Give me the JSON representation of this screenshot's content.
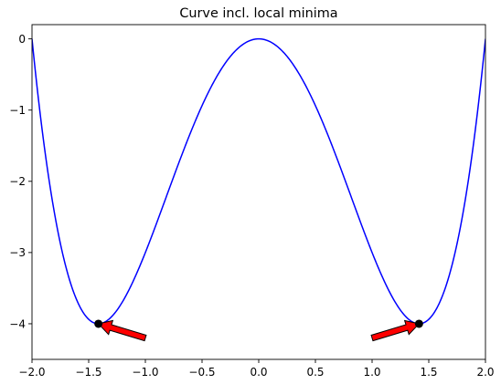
{
  "chart_data": {
    "type": "line",
    "title": "Curve incl. local minima",
    "xlabel": "",
    "ylabel": "",
    "xlim": [
      -2.0,
      2.0
    ],
    "ylim": [
      -4.5,
      0.2
    ],
    "x_ticks": [
      -2.0,
      -1.5,
      -1.0,
      -0.5,
      0.0,
      0.5,
      1.0,
      1.5,
      2.0
    ],
    "x_tick_labels": [
      "−2.0",
      "−1.5",
      "−1.0",
      "−0.5",
      "0.0",
      "0.5",
      "1.0",
      "1.5",
      "2.0"
    ],
    "y_ticks": [
      0,
      -1,
      -2,
      -3,
      -4
    ],
    "y_tick_labels": [
      "0",
      "−1",
      "−2",
      "−3",
      "−4"
    ],
    "grid": false,
    "series": [
      {
        "function": "y = x^4 - 4x^2",
        "color": "#0000ff",
        "x": [
          -2.0,
          -1.8,
          -1.6,
          -1.414,
          -1.2,
          -1.0,
          -0.8,
          -0.6,
          -0.4,
          -0.2,
          0.0,
          0.2,
          0.4,
          0.6,
          0.8,
          1.0,
          1.2,
          1.414,
          1.6,
          1.8,
          2.0
        ],
        "y": [
          0.0,
          -2.45,
          -3.69,
          -4.0,
          -3.69,
          -3.0,
          -2.15,
          -1.31,
          -0.61,
          -0.16,
          0.0,
          -0.16,
          -0.61,
          -1.31,
          -2.15,
          -3.0,
          -3.69,
          -4.0,
          -3.69,
          -2.45,
          0.0
        ]
      }
    ],
    "minima": [
      {
        "x": -1.414,
        "y": -4.0
      },
      {
        "x": 1.414,
        "y": -4.0
      }
    ],
    "arrows": [
      {
        "from": [
          -1.0,
          -4.2
        ],
        "to": [
          -1.414,
          -4.0
        ],
        "color": "#ff0000"
      },
      {
        "from": [
          1.0,
          -4.2
        ],
        "to": [
          1.414,
          -4.0
        ],
        "color": "#ff0000"
      }
    ],
    "marker_color": "#000000"
  }
}
